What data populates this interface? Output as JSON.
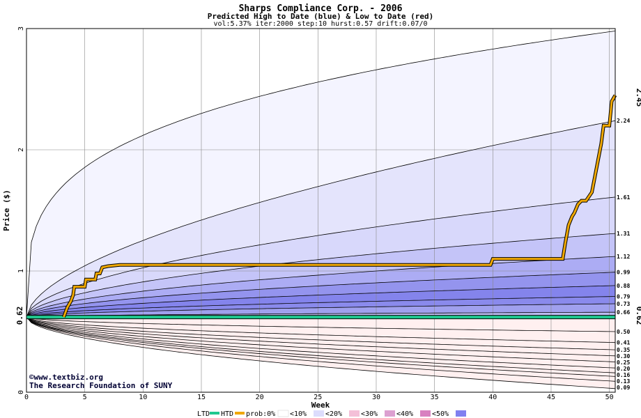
{
  "chart_data": {
    "type": "area",
    "title": "Sharps Compliance Corp. - 2006",
    "subtitle": "Predicted High to Date (blue) &  Low to Date (red)",
    "params": "vol:5.37% iter:2000 step:10 hurst:0.57 drift:0.07/0",
    "xlabel": "Week",
    "ylabel": "Price ($)",
    "xlim": [
      0,
      50.5
    ],
    "ylim": [
      0,
      3
    ],
    "x_ticks": [
      0,
      5,
      10,
      15,
      20,
      25,
      30,
      35,
      40,
      45,
      50
    ],
    "y_ticks": [
      0,
      1,
      2,
      3
    ],
    "grid": true,
    "start_price": 0.62,
    "start_label": "0.62",
    "end_high": 2.45,
    "end_high_label": "2.45",
    "end_start_label": "0.62",
    "high_levels": [
      2.98,
      2.24,
      1.61,
      1.31,
      1.12,
      0.99,
      0.88,
      0.79,
      0.73,
      0.66
    ],
    "high_labels": [
      "2.24",
      "1.61",
      "1.31",
      "1.12",
      "0.99",
      "0.88",
      "0.79",
      "0.73",
      "0.66"
    ],
    "low_levels": [
      0.5,
      0.41,
      0.35,
      0.3,
      0.25,
      0.2,
      0.16,
      0.13,
      0.09,
      0.03
    ],
    "low_labels": [
      "0.50",
      "0.41",
      "0.35",
      "0.30",
      "0.25",
      "0.20",
      "0.16",
      "0.13",
      "0.09"
    ],
    "htd_path": [
      [
        3.2,
        0.62
      ],
      [
        3.5,
        0.7
      ],
      [
        3.8,
        0.75
      ],
      [
        4.0,
        0.8
      ],
      [
        4.1,
        0.87
      ],
      [
        5.0,
        0.87
      ],
      [
        5.1,
        0.93
      ],
      [
        5.9,
        0.93
      ],
      [
        6.0,
        0.98
      ],
      [
        6.3,
        0.98
      ],
      [
        6.5,
        1.03
      ],
      [
        7.0,
        1.04
      ],
      [
        8.0,
        1.05
      ],
      [
        39.8,
        1.05
      ],
      [
        40.0,
        1.1
      ],
      [
        46.0,
        1.1
      ],
      [
        46.2,
        1.22
      ],
      [
        46.5,
        1.38
      ],
      [
        46.8,
        1.45
      ],
      [
        47.0,
        1.48
      ],
      [
        47.3,
        1.55
      ],
      [
        47.6,
        1.58
      ],
      [
        48.0,
        1.58
      ],
      [
        48.5,
        1.65
      ],
      [
        49.0,
        1.9
      ],
      [
        49.3,
        2.05
      ],
      [
        49.5,
        2.2
      ],
      [
        50.0,
        2.2
      ],
      [
        50.2,
        2.4
      ],
      [
        50.5,
        2.45
      ]
    ],
    "ltd_path": [
      [
        0,
        0.62
      ],
      [
        50.5,
        0.62
      ]
    ],
    "colors": {
      "high_bands": [
        "#f4f4ff",
        "#e4e4fc",
        "#d8d8fb",
        "#c4c4f8",
        "#acacf4",
        "#9494ee",
        "#8484ec",
        "#8a8aec",
        "#a0a0ee",
        "#bcbcf2"
      ],
      "low_bands": [
        "#fff0f0",
        "#ffe0e0",
        "#ffcccc",
        "#ffb4b4",
        "#f8a0a0",
        "#f48c8c",
        "#f6a0a0",
        "#f8b8b8",
        "#fcd4d4",
        "#fff0f0"
      ],
      "ltd": "#20c890",
      "htd": "#f0a800",
      "end_high": "#a07000",
      "start": "#007060"
    }
  },
  "credits": {
    "site": "©www.textbiz.org",
    "org": "The Research Foundation of SUNY"
  },
  "legend": {
    "ltd": "LTD",
    "htd": "HTD",
    "prob": "prob:0%",
    "items": [
      {
        "label": "<10%",
        "color": "#f4f4ff"
      },
      {
        "label": "<20%",
        "color": "#dcdcfc"
      },
      {
        "label": "<30%",
        "color": "#f4c0d8"
      },
      {
        "label": "<40%",
        "color": "#dca0d0"
      },
      {
        "label": "<50%",
        "color": "#d880c0"
      }
    ],
    "lead_swatch": "#ffffff",
    "tail_swatch": "#8080f0"
  }
}
